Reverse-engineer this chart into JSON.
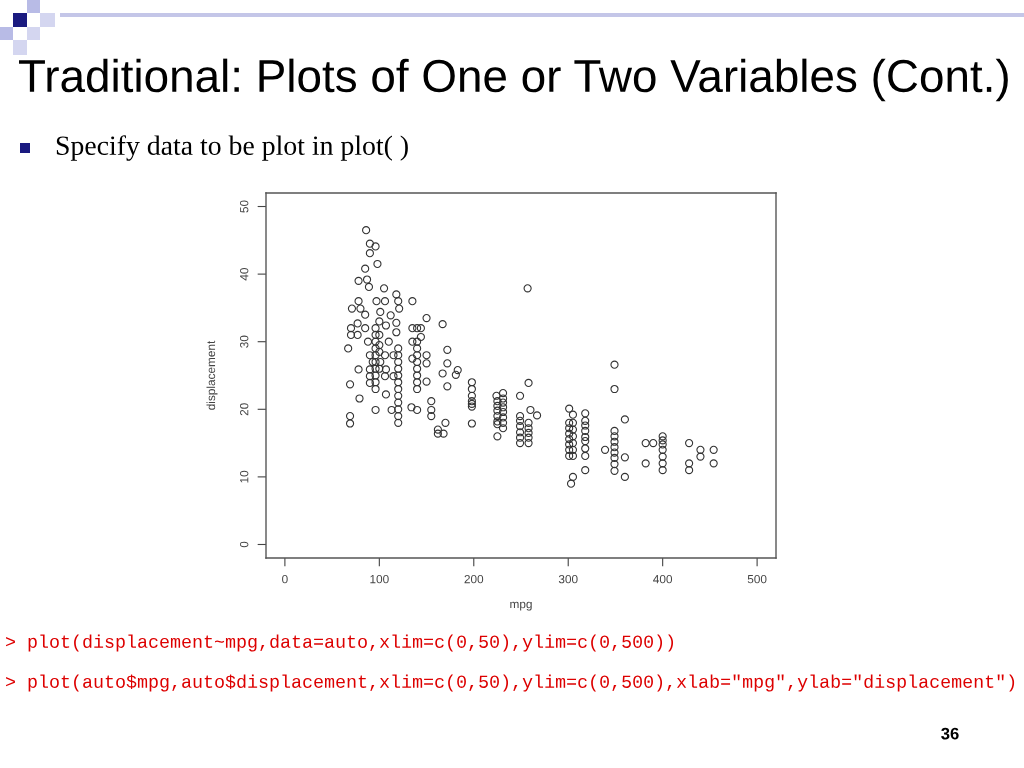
{
  "chart_data": {
    "type": "scatter",
    "title": "Traditional: Plots of One or Two Variables (Cont.)",
    "subtitle": "Specify data to be plot in plot( )",
    "xlabel": "mpg",
    "ylabel": "displacement",
    "series": [
      {
        "color": "#333333",
        "x": [
          86,
          90,
          96,
          90,
          98,
          85,
          78,
          87,
          89,
          105,
          118,
          78,
          97,
          106,
          120,
          135,
          71,
          80,
          121,
          101,
          85,
          112,
          107,
          118,
          77,
          70,
          85,
          135,
          70,
          77,
          118,
          67,
          88,
          110,
          135,
          90,
          106,
          115,
          135,
          93,
          101,
          78,
          90,
          107,
          90,
          106,
          115,
          69,
          90,
          79,
          107,
          69,
          69,
          113,
          134,
          96,
          96,
          96,
          96,
          96,
          96,
          96,
          96,
          96,
          96,
          96,
          100,
          100,
          100,
          100,
          100,
          120,
          120,
          120,
          120,
          120,
          120,
          120,
          120,
          120,
          120,
          120,
          120,
          140,
          140,
          140,
          140,
          140,
          140,
          140,
          140,
          140,
          140,
          150,
          150,
          150,
          150,
          155,
          155,
          155,
          144,
          144,
          167,
          172,
          172,
          167,
          181,
          183,
          172,
          170,
          162,
          162,
          168,
          198,
          198,
          198,
          198,
          198,
          198,
          198,
          224,
          225,
          225,
          225,
          225,
          225,
          225,
          225,
          231,
          231,
          231,
          231,
          231,
          231,
          231,
          231,
          249,
          249,
          249,
          249,
          249,
          249,
          249,
          258,
          258,
          258,
          258,
          258,
          258,
          267,
          260,
          257,
          301,
          301,
          301,
          301,
          301,
          301,
          301,
          301,
          305,
          305,
          305,
          305,
          305,
          305,
          305,
          305,
          303,
          318,
          318,
          318,
          318,
          318,
          318,
          318,
          318,
          318,
          349,
          349,
          349,
          349,
          349,
          349,
          349,
          349,
          349,
          349,
          339,
          360,
          360,
          360,
          382,
          382,
          390,
          400,
          400,
          400,
          400,
          400,
          400,
          400,
          428,
          428,
          428,
          440,
          440,
          454,
          454
        ],
        "values": [
          46.5,
          44.5,
          44.1,
          43.1,
          41.5,
          40.8,
          39,
          39.2,
          38.1,
          37.9,
          37,
          36,
          36,
          36,
          36,
          36,
          34.9,
          34.9,
          34.9,
          34.4,
          34,
          33.9,
          32.4,
          32.8,
          32.7,
          32,
          32,
          32,
          31,
          31,
          31.4,
          29,
          30,
          30,
          30,
          28,
          28,
          28,
          27.5,
          27,
          27,
          25.9,
          25.9,
          25.9,
          24.9,
          24.9,
          24.9,
          23.7,
          23.9,
          21.6,
          22.2,
          19,
          17.9,
          19.9,
          20.3,
          32,
          31,
          30,
          29,
          28,
          27,
          26,
          25,
          24,
          23,
          19.9,
          33,
          31,
          29.5,
          28.5,
          26,
          29,
          28,
          27,
          26,
          25,
          24,
          23,
          22,
          21,
          20,
          19,
          18,
          32,
          30,
          29,
          28,
          27,
          26,
          25,
          24,
          23,
          19.9,
          33.5,
          28,
          26.8,
          24.1,
          21.2,
          19.9,
          19,
          32,
          30.7,
          32.6,
          28.8,
          26.8,
          25.3,
          25.1,
          25.8,
          23.4,
          18,
          17,
          16.4,
          16.4,
          24,
          23,
          22,
          21.2,
          20.8,
          20.4,
          17.9,
          22,
          21.2,
          20.5,
          19.8,
          19,
          18.2,
          17.8,
          16,
          22.4,
          21.6,
          21,
          20.3,
          19.6,
          18.8,
          18,
          17.2,
          22,
          19,
          18.3,
          17.5,
          16.6,
          15.8,
          15,
          23.9,
          18,
          17.2,
          16.5,
          15.8,
          15,
          19.1,
          19.9,
          37.9,
          20.1,
          18,
          17.2,
          16.4,
          15.6,
          14.8,
          14,
          13.1,
          19.2,
          18,
          17,
          16,
          15,
          14,
          13.1,
          10,
          9,
          19.4,
          18.3,
          17.6,
          16.8,
          15.9,
          15.3,
          14.2,
          13.1,
          11,
          26.6,
          23,
          16.8,
          16,
          15.2,
          14.4,
          13.6,
          12.8,
          11.9,
          10.9,
          14,
          18.5,
          12.9,
          10,
          15,
          12,
          15,
          16,
          15.4,
          14.8,
          14,
          13,
          12,
          11,
          15,
          12,
          11,
          14,
          13,
          14,
          12
        ]
      }
    ],
    "marker": "circle",
    "xlim": [
      -20,
      520
    ],
    "ylim": [
      -2,
      52
    ],
    "xticks": [
      0,
      100,
      200,
      300,
      400,
      500
    ],
    "yticks": [
      0,
      10,
      20,
      30,
      40,
      50
    ],
    "annotations": [
      "> plot(displacement~mpg,data=auto,xlim=c(0,50),ylim=c(0,500))",
      "> plot(auto$mpg,auto$displacement,xlim=c(0,50),ylim=c(0,500),xlab=\"mpg\",ylab=\"displacement\")",
      "36"
    ]
  }
}
